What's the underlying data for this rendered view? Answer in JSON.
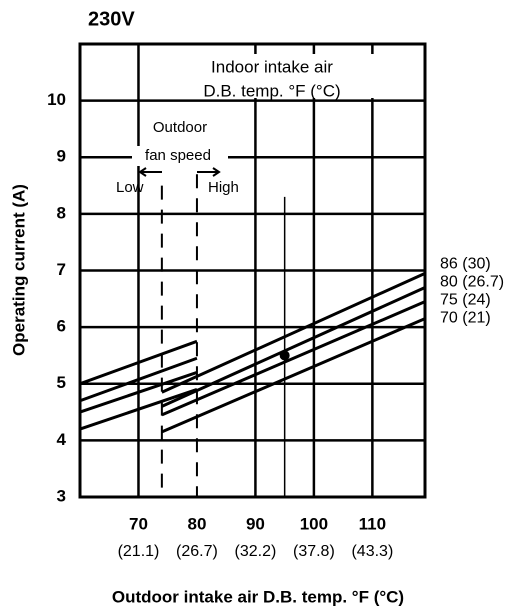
{
  "chart_data": {
    "type": "line",
    "title": "230V",
    "ylabel": "Operating current (A)",
    "xlabel": "Outdoor intake air D.B. temp. °F (°C)",
    "annotations": {
      "indoor": [
        "Indoor intake air",
        "D.B. temp. °F (°C)"
      ],
      "fan": [
        "Outdoor",
        "fan speed"
      ],
      "low": "Low",
      "high": "High"
    },
    "xlim": [
      60,
      119
    ],
    "ylim": [
      3,
      11
    ],
    "xticks": [
      70,
      80,
      90,
      100,
      110
    ],
    "xtick_sublabels": [
      "(21.1)",
      "(26.7)",
      "(32.2)",
      "(37.8)",
      "(43.3)"
    ],
    "yticks": [
      3,
      4,
      5,
      6,
      7,
      8,
      9,
      10
    ],
    "grid_x": [
      70,
      90,
      100,
      110
    ],
    "dashed_vlines": [
      {
        "x": 74,
        "from": 8.5
      },
      {
        "x": 80,
        "from": 8.7
      }
    ],
    "marker_line": {
      "x": 95,
      "from": 8.3
    },
    "point": {
      "x": 95,
      "y": 5.5
    },
    "grid": true,
    "series": [
      {
        "name": "86 (30)",
        "color": "#000000",
        "x": [
          60,
          80,
          null,
          74,
          119
        ],
        "values": [
          5.0,
          5.75,
          null,
          4.85,
          6.95
        ]
      },
      {
        "name": "80 (26.7)",
        "color": "#000000",
        "x": [
          60,
          80,
          null,
          74,
          119
        ],
        "values": [
          4.7,
          5.45,
          null,
          4.6,
          6.7
        ]
      },
      {
        "name": "75 (24)",
        "color": "#000000",
        "x": [
          60,
          80,
          null,
          74,
          119
        ],
        "values": [
          4.5,
          5.2,
          null,
          4.45,
          6.45
        ]
      },
      {
        "name": "70 (21)",
        "color": "#000000",
        "x": [
          60,
          80,
          null,
          74,
          119
        ],
        "values": [
          4.2,
          4.9,
          null,
          4.15,
          6.15
        ]
      }
    ]
  }
}
